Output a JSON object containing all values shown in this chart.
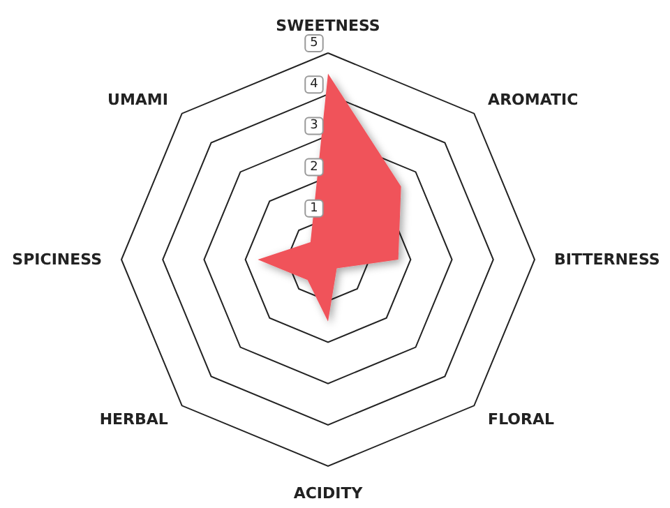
{
  "chart_data": {
    "type": "radar",
    "categories": [
      "SWEETNESS",
      "AROMATIC",
      "BITTERNESS",
      "FLORAL",
      "ACIDITY",
      "HERBAL",
      "SPICINESS",
      "UMAMI"
    ],
    "series": [
      {
        "color": "#f0525a",
        "values": [
          4.5,
          2.5,
          1.7,
          0.3,
          1.5,
          0.7,
          1.7,
          0.6
        ]
      }
    ],
    "ylim": [
      0,
      5
    ],
    "yticks": [
      1,
      2,
      3,
      4,
      5
    ]
  }
}
